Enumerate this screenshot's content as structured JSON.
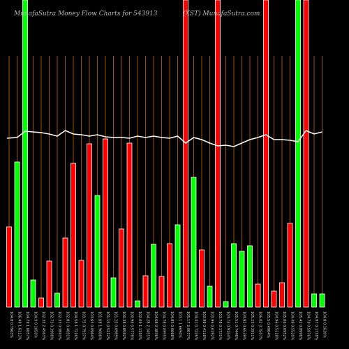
{
  "chart_data": {
    "type": "bar",
    "title": "MunafaSutra  Money Flow  Charts for 543913",
    "subtitle": "(XST) MunafaSutra.com",
    "categories": [
      "104.8 0.7963%",
      "106.49 1.6113%",
      "104.79 1.6057%",
      "104.9 0.1050%",
      "102.33 2.4563%",
      "102.73 0.3908%",
      "102.33 0.3893%",
      "102.81 0.4691%",
      "104.58 1.7216%",
      "103.75 0.7937%",
      "103.65 0.0964%",
      "101.68 1.9006%",
      "101.15 0.5212%",
      "101.25 0.0989%",
      "100.38 0.8592%",
      "100.96 0.5778%",
      "102.09 1.1193%",
      "104.28 2.1451%",
      "104.68 0.3836%",
      "104.78 0.0955%",
      "104.85 0.0668%",
      "103.1 1.6690%",
      "105.17 2.0077%",
      "104.41 0.7226%",
      "103.98 0.4118%",
      "103.96 0.0192%",
      "103.78 0.1731%",
      "104.73 0.9154%",
      "105.51 0.7448%",
      "104.82 0.6539%",
      "105.23 0.3911%",
      "106.02 0.7507%",
      "105.5 0.4904%",
      "104.96 0.5118%",
      "105.06 0.0952%",
      "104.48 0.5520%",
      "105.42 0.8996%",
      "104.79 0.5976%",
      "104.97 0.1718%",
      "104.8 0.1620%"
    ],
    "values": [
      115,
      208,
      440,
      39,
      13,
      66,
      20,
      99,
      206,
      67,
      234,
      160,
      241,
      42,
      112,
      235,
      9,
      45,
      90,
      44,
      91,
      118,
      440,
      186,
      82,
      30,
      440,
      8,
      91,
      80,
      88,
      33,
      440,
      23,
      35,
      120,
      440,
      440,
      19,
      19
    ],
    "colors": [
      "#ff0000",
      "#00ff00",
      "#00ff00",
      "#00ff00",
      "#ff0000",
      "#ff0000",
      "#00ff00",
      "#ff0000",
      "#ff0000",
      "#ff0000",
      "#ff0000",
      "#00ff00",
      "#ff0000",
      "#00ff00",
      "#ff0000",
      "#ff0000",
      "#00ff00",
      "#ff0000",
      "#00ff00",
      "#ff0000",
      "#ff0000",
      "#00ff00",
      "#ff0000",
      "#00ff00",
      "#ff0000",
      "#00ff00",
      "#ff0000",
      "#00ff00",
      "#00ff00",
      "#00ff00",
      "#00ff00",
      "#ff0000",
      "#ff0000",
      "#ff0000",
      "#ff0000",
      "#ff0000",
      "#00ff00",
      "#ff0000",
      "#00ff00",
      "#00ff00"
    ],
    "line_values": [
      242,
      243,
      252,
      251,
      250,
      248,
      245,
      253,
      248,
      247,
      245,
      247,
      244,
      243,
      243,
      242,
      245,
      243,
      245,
      243,
      242,
      245,
      235,
      243,
      240,
      235,
      231,
      232,
      230,
      235,
      240,
      243,
      247,
      240,
      240,
      239,
      237,
      253,
      248,
      251
    ],
    "line_color": "#ffffff",
    "grid_color": "#cc6600",
    "ylim": [
      0,
      440
    ]
  }
}
